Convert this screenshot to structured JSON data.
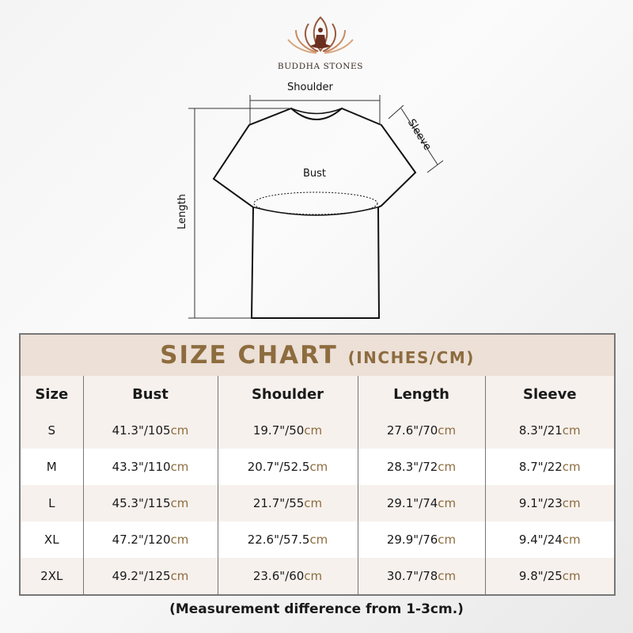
{
  "brand": {
    "name": "BUDDHA STONES",
    "color": "#8b4a32"
  },
  "diagram": {
    "shoulder": "Shoulder",
    "sleeve": "Sleeve",
    "bust": "Bust",
    "length": "Length"
  },
  "chart": {
    "title": "SIZE CHART",
    "subtitle": "(INCHES/CM)",
    "accent": "#8d6c3e",
    "headers": [
      "Size",
      "Bust",
      "Shoulder",
      "Length",
      "Sleeve"
    ],
    "rows": [
      {
        "size": "S",
        "cells": [
          {
            "v": "41.3\"/105",
            "u": "cm"
          },
          {
            "v": "19.7\"/50",
            "u": "cm"
          },
          {
            "v": "27.6\"/70",
            "u": "cm"
          },
          {
            "v": "8.3\"/21",
            "u": "cm"
          }
        ]
      },
      {
        "size": "M",
        "cells": [
          {
            "v": "43.3\"/110",
            "u": "cm"
          },
          {
            "v": "20.7\"/52.5",
            "u": "cm"
          },
          {
            "v": "28.3\"/72",
            "u": "cm"
          },
          {
            "v": "8.7\"/22",
            "u": "cm"
          }
        ]
      },
      {
        "size": "L",
        "cells": [
          {
            "v": "45.3\"/115",
            "u": "cm"
          },
          {
            "v": "21.7\"/55",
            "u": "cm"
          },
          {
            "v": "29.1\"/74",
            "u": "cm"
          },
          {
            "v": "9.1\"/23",
            "u": "cm"
          }
        ]
      },
      {
        "size": "XL",
        "cells": [
          {
            "v": "47.2\"/120",
            "u": "cm"
          },
          {
            "v": "22.6\"/57.5",
            "u": "cm"
          },
          {
            "v": "29.9\"/76",
            "u": "cm"
          },
          {
            "v": "9.4\"/24",
            "u": "cm"
          }
        ]
      },
      {
        "size": "2XL",
        "cells": [
          {
            "v": "49.2\"/125",
            "u": "cm"
          },
          {
            "v": "23.6\"/60",
            "u": "cm"
          },
          {
            "v": "30.7\"/78",
            "u": "cm"
          },
          {
            "v": "9.8\"/25",
            "u": "cm"
          }
        ]
      }
    ]
  },
  "note": "(Measurement difference from 1-3cm.)"
}
